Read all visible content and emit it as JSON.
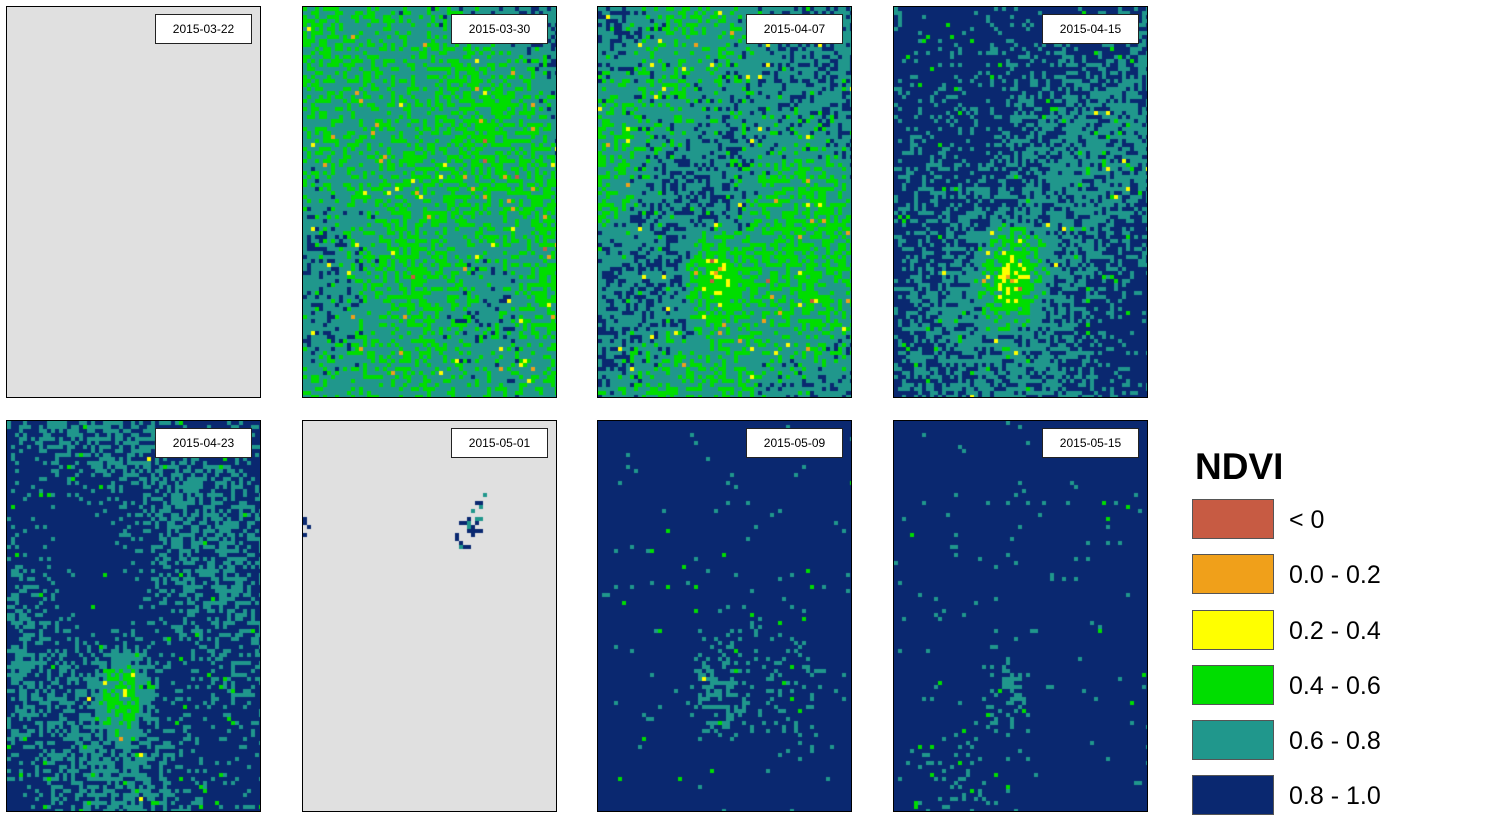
{
  "legend": {
    "title": "NDVI",
    "classes": [
      {
        "label": "< 0",
        "color": "#c75b43"
      },
      {
        "label": "0.0 - 0.2",
        "color": "#f0a01a"
      },
      {
        "label": "0.2 - 0.4",
        "color": "#ffff00"
      },
      {
        "label": "0.4 - 0.6",
        "color": "#00dd00"
      },
      {
        "label": "0.6 - 0.8",
        "color": "#20978c"
      },
      {
        "label": "0.8 - 1.0",
        "color": "#0a2870"
      }
    ]
  },
  "nodata_color": "#e0e0e0",
  "panels": [
    {
      "date": "2015-03-22"
    },
    {
      "date": "2015-03-30"
    },
    {
      "date": "2015-04-07"
    },
    {
      "date": "2015-04-15"
    },
    {
      "date": "2015-04-23"
    },
    {
      "date": "2015-05-01"
    },
    {
      "date": "2015-05-09"
    },
    {
      "date": "2015-05-15"
    }
  ]
}
